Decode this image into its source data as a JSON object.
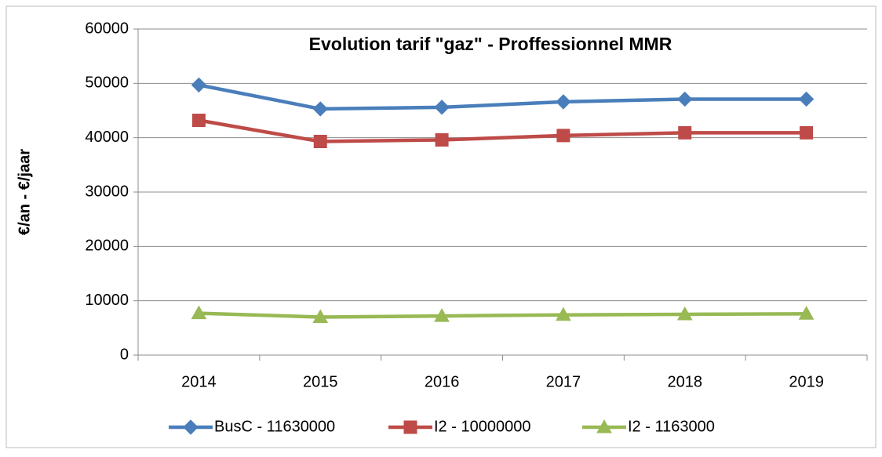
{
  "chart_data": {
    "type": "line",
    "title": "Evolution tarif \"gaz\" - Proffessionnel MMR",
    "y_label": "€/an - €/jaar",
    "categories": [
      "2014",
      "2015",
      "2016",
      "2017",
      "2018",
      "2019"
    ],
    "series": [
      {
        "name": "BusC - 11630000",
        "color": "#4a7ebb",
        "marker": "diamond",
        "values": [
          49700,
          45300,
          45600,
          46600,
          47100,
          47100
        ]
      },
      {
        "name": "I2 - 10000000",
        "color": "#be4b48",
        "marker": "square",
        "values": [
          43200,
          39300,
          39600,
          40400,
          40900,
          40900
        ]
      },
      {
        "name": "I2 - 1163000",
        "color": "#98b954",
        "marker": "triangle",
        "values": [
          7700,
          7000,
          7200,
          7400,
          7500,
          7600
        ]
      }
    ],
    "ylim": [
      0,
      60000
    ],
    "yticks": [
      0,
      10000,
      20000,
      30000,
      40000,
      50000,
      60000
    ],
    "grid": true,
    "legend": "bottom"
  }
}
